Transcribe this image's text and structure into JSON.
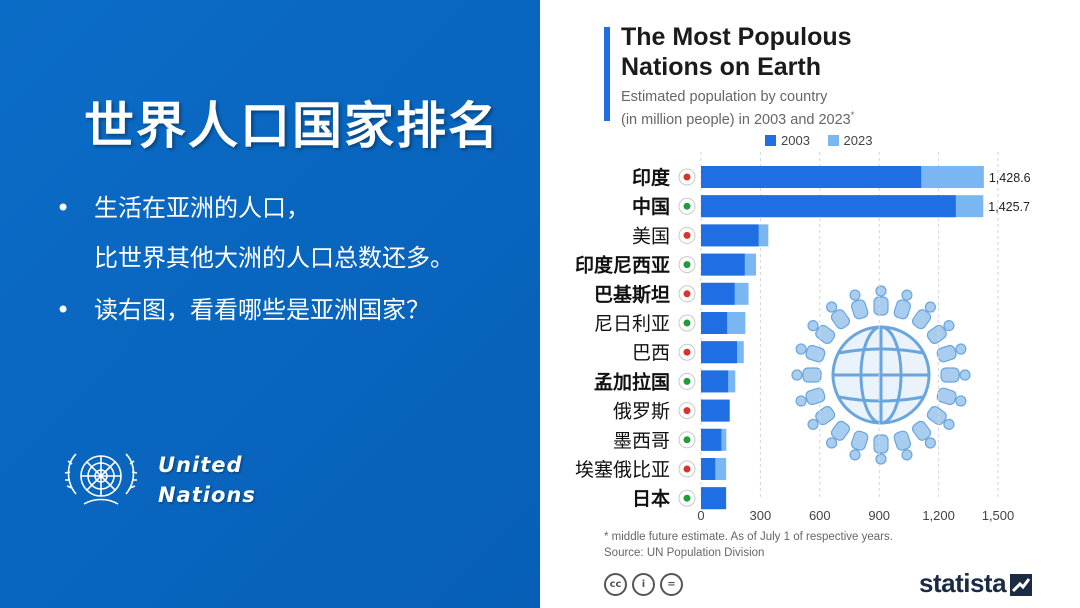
{
  "slide": {
    "title": "世界人口国家排名",
    "bullets": [
      {
        "dot": "•",
        "lines": [
          "生活在亚洲的人口，",
          "比世界其他大洲的人口总数还多。"
        ]
      },
      {
        "dot": "•",
        "lines": [
          "读右图，看看哪些是亚洲国家？"
        ]
      }
    ],
    "org_line1": "United",
    "org_line2": "Nations"
  },
  "colors": {
    "bar_2003": "#1f6ee3",
    "bar_2023": "#7ab6f2",
    "slide_bg": "#0a66c2"
  },
  "chart_data": {
    "type": "bar",
    "orientation": "horizontal",
    "title_line1": "The Most Populous",
    "title_line2": "Nations on Earth",
    "subtitle_line1": "Estimated population by country",
    "subtitle_line2": "(in million people) in 2003 and 2023",
    "subtitle_mark": "*",
    "categories": [
      "印度",
      "中国",
      "美国",
      "印度尼西亚",
      "巴基斯坦",
      "尼日利亚",
      "巴西",
      "孟加拉国",
      "俄罗斯",
      "墨西哥",
      "埃塞俄比亚",
      "日本"
    ],
    "bold_categories": [
      "印度",
      "中国",
      "印度尼西亚",
      "巴基斯坦",
      "孟加拉国",
      "日本"
    ],
    "series": [
      {
        "name": "2003",
        "values": [
          1112,
          1287,
          291,
          221,
          170,
          132,
          182,
          137,
          145,
          103,
          72,
          127
        ]
      },
      {
        "name": "2023",
        "values": [
          1428.6,
          1425.7,
          340,
          278,
          240,
          224,
          216,
          173,
          144,
          128,
          127,
          123
        ]
      }
    ],
    "data_labels": [
      "1,428.6",
      "1,425.7"
    ],
    "x_ticks": [
      0,
      300,
      600,
      900,
      1200,
      1500
    ],
    "x_tick_labels": [
      "0",
      "300",
      "600",
      "900",
      "1,200",
      "1,500"
    ],
    "xlim": [
      0,
      1500
    ],
    "footnote_line1": "* middle future estimate. As of July 1 of respective years.",
    "footnote_line2": "Source: UN Population Division"
  },
  "branding": {
    "license_icons": [
      "cc",
      "i",
      "="
    ],
    "statista": "statista"
  }
}
